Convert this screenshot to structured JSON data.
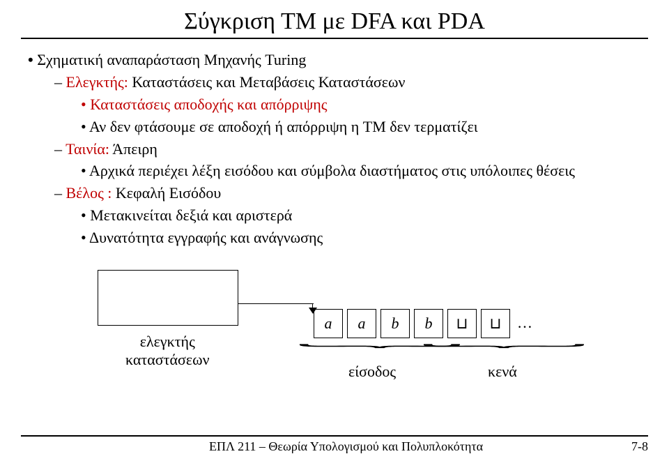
{
  "title": "Σύγκριση ΤΜ με DFA και PDA",
  "bullet_main": "Σχηματική αναπαράσταση Μηχανής Turing",
  "controller_head": "Ελεγκτής:",
  "controller_rest": " Καταστάσεις και Μεταβάσεις Καταστάσεων",
  "accept_bullet": "Καταστάσεις αποδοχής και απόρριψης",
  "accept_sub": "Αν δεν φτάσουμε σε αποδοχή ή απόρριψη η TM δεν τερματίζει",
  "tape_head": "Ταινία:",
  "tape_rest": " Άπειρη",
  "tape_sub": "Αρχικά περιέχει λέξη εισόδου και σύμβολα διαστήματος στις υπόλοιπες θέσεις",
  "arrow_head": "Βέλος :",
  "arrow_rest": " Κεφαλή Εισόδου",
  "arrow_sub1": "Μετακινείται δεξιά και αριστερά",
  "arrow_sub2": "Δυνατότητα εγγραφής και ανάγνωσης",
  "controller_box_label_1": "ελεγκτής",
  "controller_box_label_2": "καταστάσεων",
  "tape_cells": [
    "a",
    "a",
    "b",
    "b",
    "⊔",
    "⊔"
  ],
  "tape_dots": "…",
  "input_label": "είσοδος",
  "blank_label": "κενά",
  "footer_center": "ΕΠΛ 211 – Θεωρία Υπολογισμού και Πολυπλοκότητα",
  "footer_right": "7-8",
  "colors": {
    "red": "#c00000",
    "black": "#000000",
    "bg": "#ffffff"
  }
}
